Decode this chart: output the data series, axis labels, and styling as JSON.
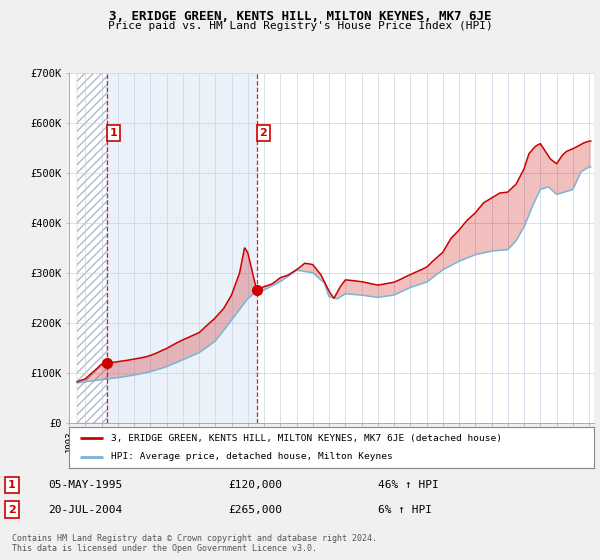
{
  "title": "3, ERIDGE GREEN, KENTS HILL, MILTON KEYNES, MK7 6JE",
  "subtitle": "Price paid vs. HM Land Registry's House Price Index (HPI)",
  "legend_line1": "3, ERIDGE GREEN, KENTS HILL, MILTON KEYNES, MK7 6JE (detached house)",
  "legend_line2": "HPI: Average price, detached house, Milton Keynes",
  "transaction1_date": "05-MAY-1995",
  "transaction1_price": "£120,000",
  "transaction1_hpi": "46% ↑ HPI",
  "transaction2_date": "20-JUL-2004",
  "transaction2_price": "£265,000",
  "transaction2_hpi": "6% ↑ HPI",
  "footer": "Contains HM Land Registry data © Crown copyright and database right 2024.\nThis data is licensed under the Open Government Licence v3.0.",
  "line_color_red": "#cc0000",
  "line_color_blue": "#7ab3d4",
  "bg_color": "#f0f0f0",
  "grid_color": "#cccccc",
  "ylim": [
    0,
    700000
  ],
  "yticks": [
    0,
    100000,
    200000,
    300000,
    400000,
    500000,
    600000,
    700000
  ],
  "ytick_labels": [
    "£0",
    "£100K",
    "£200K",
    "£300K",
    "£400K",
    "£500K",
    "£600K",
    "£700K"
  ],
  "marker1_x": 1995.35,
  "marker1_y": 120000,
  "marker2_x": 2004.55,
  "marker2_y": 265000,
  "vline1_x": 1995.35,
  "vline2_x": 2004.55,
  "xlim_left": 1993.5,
  "xlim_right": 2025.3
}
